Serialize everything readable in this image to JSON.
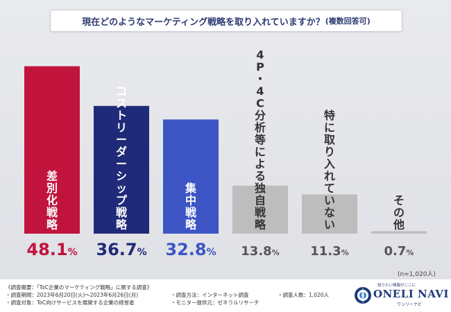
{
  "title": "現在どのようなマーケティング戦略を取り入れていますか？",
  "title_suffix": "(複数回答可)",
  "sample_note": "(n=1,020人)",
  "chart_data": {
    "type": "bar",
    "categories": [
      "差別化戦略",
      "コストリーダーシップ戦略",
      "集中戦略",
      "4P・4C分析等による独自戦略",
      "特に取り入れていない",
      "その他"
    ],
    "values": [
      48.1,
      36.7,
      32.8,
      13.8,
      11.3,
      0.7
    ],
    "value_labels": [
      {
        "int": "48.1",
        "unit": "%"
      },
      {
        "int": "36.7",
        "unit": "%"
      },
      {
        "int": "32.8",
        "unit": "%"
      },
      {
        "int": "13.8",
        "unit": "%"
      },
      {
        "int": "11.3",
        "unit": "%"
      },
      {
        "int": "0.7",
        "unit": "%"
      }
    ],
    "colors": [
      "#c0143c",
      "#1f2a78",
      "#3d55c4",
      "#bdbdbd",
      "#bdbdbd",
      "#bdbdbd"
    ],
    "value_colors": [
      "#c0143c",
      "#1f2a78",
      "#3d55c4",
      "#555555",
      "#555555",
      "#555555"
    ],
    "ylim": [
      0,
      50
    ],
    "grid": false
  },
  "footer": {
    "col1": [
      "《調査概要：「ToC企業のマーケティング戦略」に関する調査》",
      "・調査期間：2023年6月20日(火)〜2023年6月26日(月)",
      "・調査対象：ToC向けサービスを展開する企業の経営者"
    ],
    "col2": [
      "・調査方法：インターネット調査",
      "・モニター提供元：ゼネラルリサーチ"
    ],
    "col3": [
      "・調査人数：1,020人"
    ]
  },
  "logo": {
    "tagline": "知りたい情報がここに",
    "name": "ONELI NAVI",
    "sub": "ワンリーナビ",
    "accent": "#1e3a78"
  }
}
